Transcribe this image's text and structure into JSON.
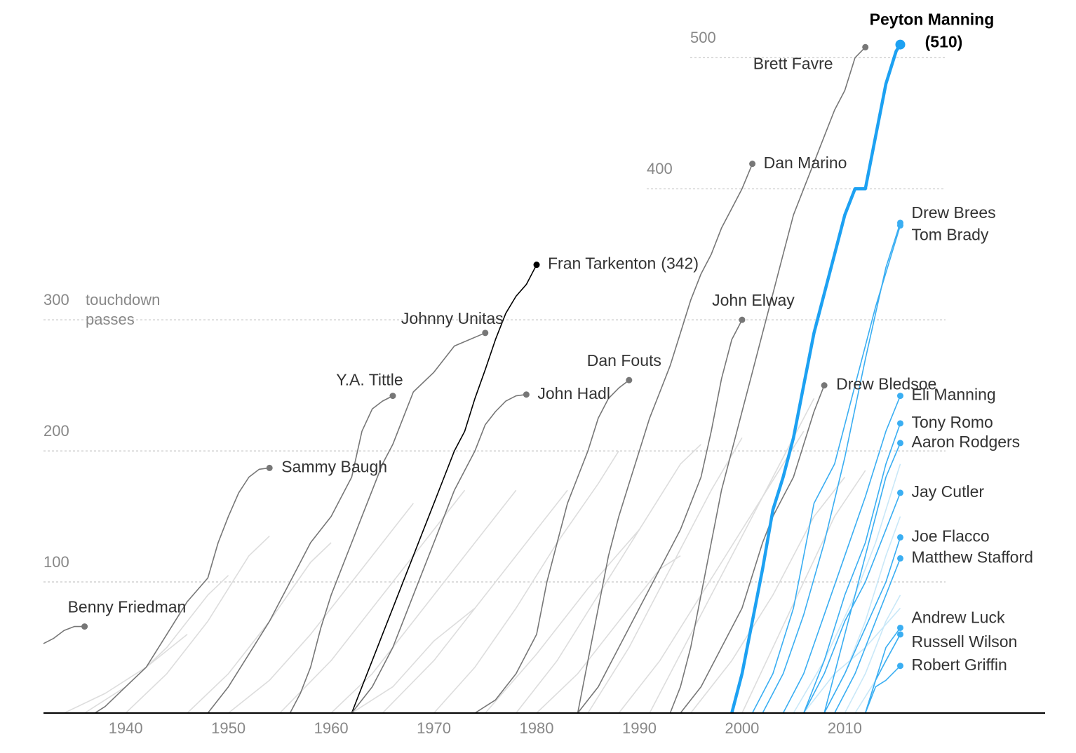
{
  "chart_data": {
    "type": "line",
    "ylabel": "touchdown passes",
    "xlim": [
      1932,
      2029.5
    ],
    "ylim": [
      0,
      544
    ],
    "xticks": [
      1940,
      1950,
      1960,
      1970,
      1980,
      1990,
      2000,
      2010
    ],
    "yticks": [
      100,
      200,
      300,
      400,
      500
    ],
    "grid": true,
    "series": [
      {
        "name": "Benny Friedman",
        "color": "#777777",
        "x": [
          1932,
          1933,
          1934,
          1935,
          1936
        ],
        "values": [
          53,
          57,
          63,
          66,
          66
        ]
      },
      {
        "name": "Sammy Baugh",
        "color": "#777777",
        "x": [
          1937,
          1938,
          1940,
          1942,
          1944,
          1946,
          1948,
          1949,
          1950,
          1951,
          1952,
          1953,
          1954
        ],
        "values": [
          0,
          5,
          20,
          35,
          60,
          85,
          103,
          130,
          150,
          168,
          180,
          186,
          187
        ]
      },
      {
        "name": "Y.A. Tittle",
        "color": "#777777",
        "x": [
          1948,
          1950,
          1952,
          1954,
          1956,
          1958,
          1960,
          1962,
          1963,
          1964,
          1965,
          1966
        ],
        "values": [
          0,
          20,
          45,
          70,
          100,
          130,
          150,
          180,
          215,
          232,
          238,
          242
        ]
      },
      {
        "name": "Johnny Unitas",
        "color": "#777777",
        "x": [
          1956,
          1957,
          1958,
          1959,
          1960,
          1961,
          1962,
          1963,
          1964,
          1965,
          1966,
          1967,
          1968,
          1970,
          1972,
          1975
        ],
        "values": [
          0,
          15,
          35,
          65,
          90,
          110,
          130,
          150,
          170,
          190,
          205,
          225,
          245,
          260,
          280,
          290
        ]
      },
      {
        "name": "Fran Tarkenton",
        "color": "#000000",
        "x": [
          1962,
          1963,
          1964,
          1965,
          1966,
          1967,
          1968,
          1969,
          1970,
          1971,
          1972,
          1973,
          1974,
          1975,
          1976,
          1977,
          1978,
          1979,
          1980
        ],
        "values": [
          0,
          20,
          40,
          60,
          80,
          100,
          120,
          140,
          160,
          180,
          200,
          215,
          240,
          262,
          285,
          305,
          318,
          327,
          342
        ],
        "value_labels": [
          null,
          null,
          null,
          null,
          null,
          null,
          null,
          null,
          null,
          null,
          null,
          null,
          null,
          null,
          null,
          null,
          null,
          null,
          "(342)"
        ]
      },
      {
        "name": "John Hadl",
        "color": "#777777",
        "x": [
          1962,
          1964,
          1966,
          1968,
          1970,
          1972,
          1974,
          1975,
          1976,
          1977,
          1978,
          1979
        ],
        "values": [
          0,
          20,
          50,
          90,
          130,
          170,
          200,
          220,
          230,
          238,
          242,
          243
        ]
      },
      {
        "name": "Dan Fouts",
        "color": "#777777",
        "x": [
          1974,
          1976,
          1978,
          1980,
          1981,
          1982,
          1983,
          1984,
          1985,
          1986,
          1987,
          1988,
          1989
        ],
        "values": [
          0,
          10,
          30,
          60,
          100,
          130,
          160,
          180,
          200,
          225,
          240,
          248,
          254
        ]
      },
      {
        "name": "Dan Marino",
        "color": "#777777",
        "x": [
          1984,
          1985,
          1986,
          1987,
          1988,
          1989,
          1990,
          1991,
          1992,
          1993,
          1994,
          1995,
          1996,
          1997,
          1998,
          1999,
          2000,
          2001
        ],
        "values": [
          0,
          40,
          80,
          120,
          150,
          175,
          200,
          225,
          245,
          265,
          290,
          315,
          335,
          350,
          370,
          385,
          400,
          419
        ]
      },
      {
        "name": "John Elway",
        "color": "#777777",
        "x": [
          1984,
          1986,
          1988,
          1990,
          1992,
          1994,
          1996,
          1997,
          1998,
          1999,
          2000
        ],
        "values": [
          0,
          20,
          50,
          80,
          110,
          140,
          180,
          215,
          255,
          285,
          300
        ]
      },
      {
        "name": "Brett Favre",
        "color": "#777777",
        "x": [
          1993,
          1994,
          1995,
          1996,
          1997,
          1998,
          1999,
          2000,
          2001,
          2002,
          2003,
          2004,
          2005,
          2006,
          2007,
          2008,
          2009,
          2010,
          2011,
          2012
        ],
        "values": [
          0,
          20,
          50,
          90,
          130,
          170,
          200,
          230,
          260,
          290,
          320,
          350,
          380,
          400,
          420,
          440,
          460,
          475,
          500,
          508
        ]
      },
      {
        "name": "Drew Bledsoe",
        "color": "#777777",
        "x": [
          1994,
          1996,
          1998,
          2000,
          2002,
          2003,
          2004,
          2005,
          2006,
          2007,
          2008
        ],
        "values": [
          0,
          20,
          50,
          80,
          130,
          150,
          165,
          180,
          205,
          230,
          250
        ]
      },
      {
        "name": "Peyton Manning",
        "color": "#1da1f2",
        "x": [
          1999,
          2000,
          2001,
          2002,
          2003,
          2004,
          2005,
          2006,
          2007,
          2008,
          2009,
          2010,
          2011,
          2012,
          2013,
          2014,
          2015,
          2015.4
        ],
        "values": [
          0,
          30,
          70,
          110,
          155,
          180,
          210,
          250,
          290,
          320,
          350,
          380,
          400,
          400,
          440,
          480,
          505,
          510
        ],
        "value_labels": [
          null,
          null,
          null,
          null,
          null,
          null,
          null,
          null,
          null,
          null,
          null,
          null,
          null,
          null,
          null,
          null,
          null,
          "(510)"
        ]
      },
      {
        "name": "Drew Brees",
        "color": "#3aaef2",
        "x": [
          2002,
          2004,
          2006,
          2008,
          2010,
          2012,
          2014,
          2015.4
        ],
        "values": [
          0,
          30,
          75,
          130,
          195,
          270,
          340,
          374
        ]
      },
      {
        "name": "Tom Brady",
        "color": "#3aaef2",
        "x": [
          2001,
          2003,
          2005,
          2007,
          2009,
          2011,
          2013,
          2015.4
        ],
        "values": [
          0,
          30,
          80,
          160,
          190,
          250,
          310,
          372
        ]
      },
      {
        "name": "Eli Manning",
        "color": "#3aaef2",
        "x": [
          2004,
          2006,
          2008,
          2010,
          2012,
          2014,
          2015.4
        ],
        "values": [
          0,
          30,
          75,
          120,
          165,
          215,
          242
        ]
      },
      {
        "name": "Tony Romo",
        "color": "#3aaef2",
        "x": [
          2006,
          2008,
          2010,
          2012,
          2014,
          2015.4
        ],
        "values": [
          0,
          40,
          90,
          130,
          190,
          221
        ]
      },
      {
        "name": "Aaron Rodgers",
        "color": "#3aaef2",
        "x": [
          2008,
          2010,
          2012,
          2014,
          2015.4
        ],
        "values": [
          0,
          60,
          120,
          180,
          206
        ]
      },
      {
        "name": "Jay Cutler",
        "color": "#3aaef2",
        "x": [
          2006,
          2008,
          2010,
          2012,
          2014,
          2015.4
        ],
        "values": [
          0,
          30,
          70,
          100,
          140,
          168
        ]
      },
      {
        "name": "Joe Flacco",
        "color": "#3aaef2",
        "x": [
          2008,
          2010,
          2012,
          2014,
          2015.4
        ],
        "values": [
          0,
          30,
          65,
          100,
          134
        ]
      },
      {
        "name": "Matthew Stafford",
        "color": "#3aaef2",
        "x": [
          2009,
          2011,
          2013,
          2015.4
        ],
        "values": [
          0,
          30,
          70,
          118
        ]
      },
      {
        "name": "Andrew Luck",
        "color": "#3aaef2",
        "x": [
          2012,
          2013,
          2014,
          2015.4
        ],
        "values": [
          0,
          25,
          50,
          65
        ]
      },
      {
        "name": "Russell Wilson",
        "color": "#3aaef2",
        "x": [
          2012,
          2013,
          2014,
          2015.4
        ],
        "values": [
          0,
          25,
          40,
          60
        ]
      },
      {
        "name": "Robert Griffin",
        "color": "#3aaef2",
        "x": [
          2012,
          2013,
          2014,
          2015.4
        ],
        "values": [
          0,
          20,
          25,
          36
        ]
      },
      {
        "color": "#dddddd",
        "x": [
          1936,
          1940,
          1944,
          1948,
          1950
        ],
        "values": [
          0,
          20,
          50,
          90,
          105
        ]
      },
      {
        "color": "#dddddd",
        "x": [
          1934,
          1938,
          1942,
          1946
        ],
        "values": [
          0,
          15,
          35,
          60
        ]
      },
      {
        "color": "#dddddd",
        "x": [
          1940,
          1944,
          1948,
          1952,
          1954
        ],
        "values": [
          0,
          30,
          70,
          120,
          135
        ]
      },
      {
        "color": "#dddddd",
        "x": [
          1946,
          1950,
          1954,
          1958,
          1960
        ],
        "values": [
          0,
          30,
          70,
          115,
          130
        ]
      },
      {
        "color": "#dddddd",
        "x": [
          1950,
          1954,
          1958,
          1962,
          1966,
          1968
        ],
        "values": [
          0,
          25,
          60,
          100,
          140,
          160
        ]
      },
      {
        "color": "#dddddd",
        "x": [
          1955,
          1960,
          1965,
          1970,
          1973
        ],
        "values": [
          0,
          40,
          90,
          140,
          170
        ]
      },
      {
        "color": "#dddddd",
        "x": [
          1960,
          1964,
          1968,
          1972,
          1976,
          1978
        ],
        "values": [
          0,
          30,
          70,
          110,
          150,
          170
        ]
      },
      {
        "color": "#dddddd",
        "x": [
          1965,
          1970,
          1975,
          1980,
          1983
        ],
        "values": [
          0,
          40,
          90,
          140,
          170
        ]
      },
      {
        "color": "#dddddd",
        "x": [
          1970,
          1974,
          1978,
          1982,
          1986,
          1988
        ],
        "values": [
          0,
          35,
          80,
          130,
          175,
          200
        ]
      },
      {
        "color": "#dddddd",
        "x": [
          1975,
          1980,
          1985,
          1990
        ],
        "values": [
          0,
          45,
          95,
          140
        ]
      },
      {
        "color": "#dddddd",
        "x": [
          1978,
          1982,
          1986,
          1990,
          1994,
          1996
        ],
        "values": [
          0,
          40,
          90,
          140,
          190,
          205
        ]
      },
      {
        "color": "#dddddd",
        "x": [
          1985,
          1989,
          1993,
          1997,
          2000
        ],
        "values": [
          0,
          50,
          110,
          170,
          210
        ]
      },
      {
        "color": "#dddddd",
        "x": [
          1988,
          1992,
          1996,
          2000,
          2004,
          2006
        ],
        "values": [
          0,
          40,
          90,
          140,
          190,
          215
        ]
      },
      {
        "color": "#dddddd",
        "x": [
          1991,
          1995,
          1999,
          2003,
          2007
        ],
        "values": [
          0,
          60,
          120,
          180,
          240
        ]
      },
      {
        "color": "#dddddd",
        "x": [
          1995,
          1999,
          2003,
          2007,
          2010
        ],
        "values": [
          0,
          40,
          90,
          150,
          180
        ]
      },
      {
        "color": "#dddddd",
        "x": [
          2000,
          2003,
          2006,
          2009,
          2012
        ],
        "values": [
          0,
          50,
          100,
          150,
          185
        ]
      },
      {
        "color": "#dddddd",
        "x": [
          1980,
          1984,
          1988,
          1992,
          1994
        ],
        "values": [
          0,
          30,
          70,
          110,
          120
        ]
      },
      {
        "color": "#dddddd",
        "x": [
          1962,
          1966,
          1970,
          1974
        ],
        "values": [
          0,
          20,
          55,
          80
        ]
      },
      {
        "color": "#c9e8f8",
        "x": [
          2005,
          2008,
          2011,
          2013,
          2015.4
        ],
        "values": [
          0,
          40,
          90,
          130,
          190
        ]
      },
      {
        "color": "#c9e8f8",
        "x": [
          2008,
          2010,
          2012,
          2014,
          2015.4
        ],
        "values": [
          0,
          30,
          70,
          120,
          150
        ]
      },
      {
        "color": "#c9e8f8",
        "x": [
          2010,
          2012,
          2014,
          2015.4
        ],
        "values": [
          0,
          30,
          70,
          90
        ]
      },
      {
        "color": "#c9e8f8",
        "x": [
          2011,
          2013,
          2015.4
        ],
        "values": [
          0,
          25,
          60
        ]
      },
      {
        "color": "#c9e8f8",
        "x": [
          2006,
          2009,
          2012,
          2015.4
        ],
        "values": [
          0,
          30,
          50,
          80
        ]
      }
    ]
  }
}
